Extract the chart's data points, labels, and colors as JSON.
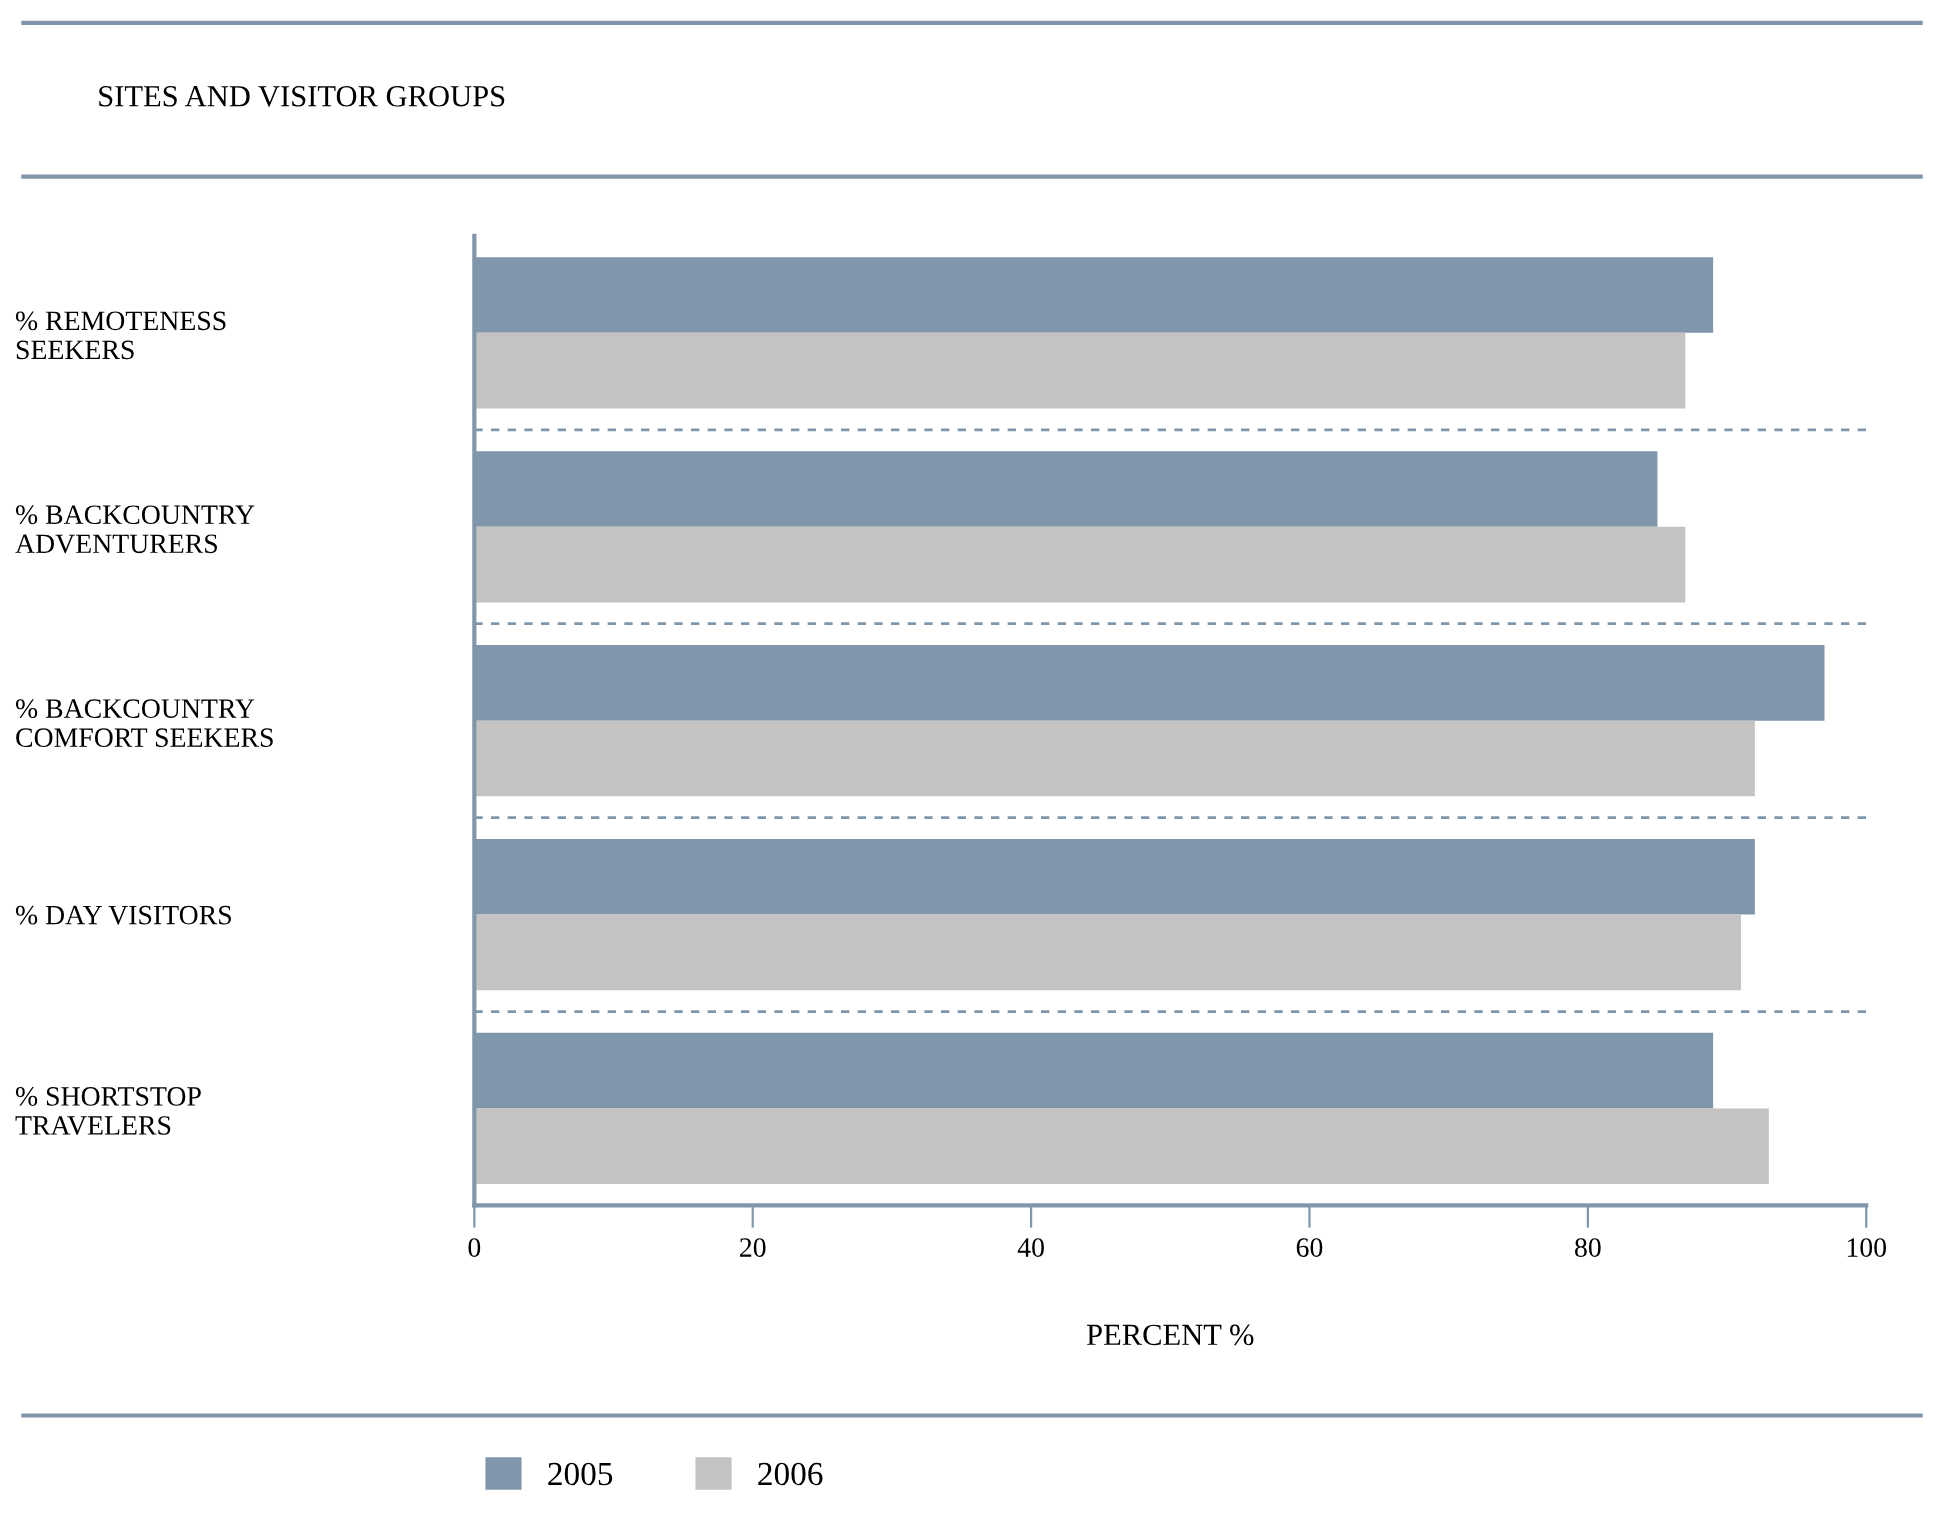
{
  "chart_data": {
    "type": "bar",
    "orientation": "horizontal",
    "title": "SITES AND VISITOR GROUPS",
    "xlabel": "PERCENT %",
    "categories": [
      "% REMOTENESS\nSEEKERS",
      "% BACKCOUNTRY\nADVENTURERS",
      "% BACKCOUNTRY\nCOMFORT SEEKERS",
      "% DAY VISITORS",
      "% SHORTSTOP\nTRAVELERS"
    ],
    "series": [
      {
        "name": "2005",
        "color": "#8096ab",
        "values": [
          89,
          85,
          97,
          92,
          89
        ]
      },
      {
        "name": "2006",
        "color": "#c4c3c2",
        "values": [
          87,
          87,
          92,
          91,
          93
        ]
      }
    ],
    "xlim": [
      0,
      100
    ],
    "xticks": [
      0,
      20,
      40,
      60,
      80,
      100
    ],
    "grid": "y",
    "legend": "bottom"
  }
}
